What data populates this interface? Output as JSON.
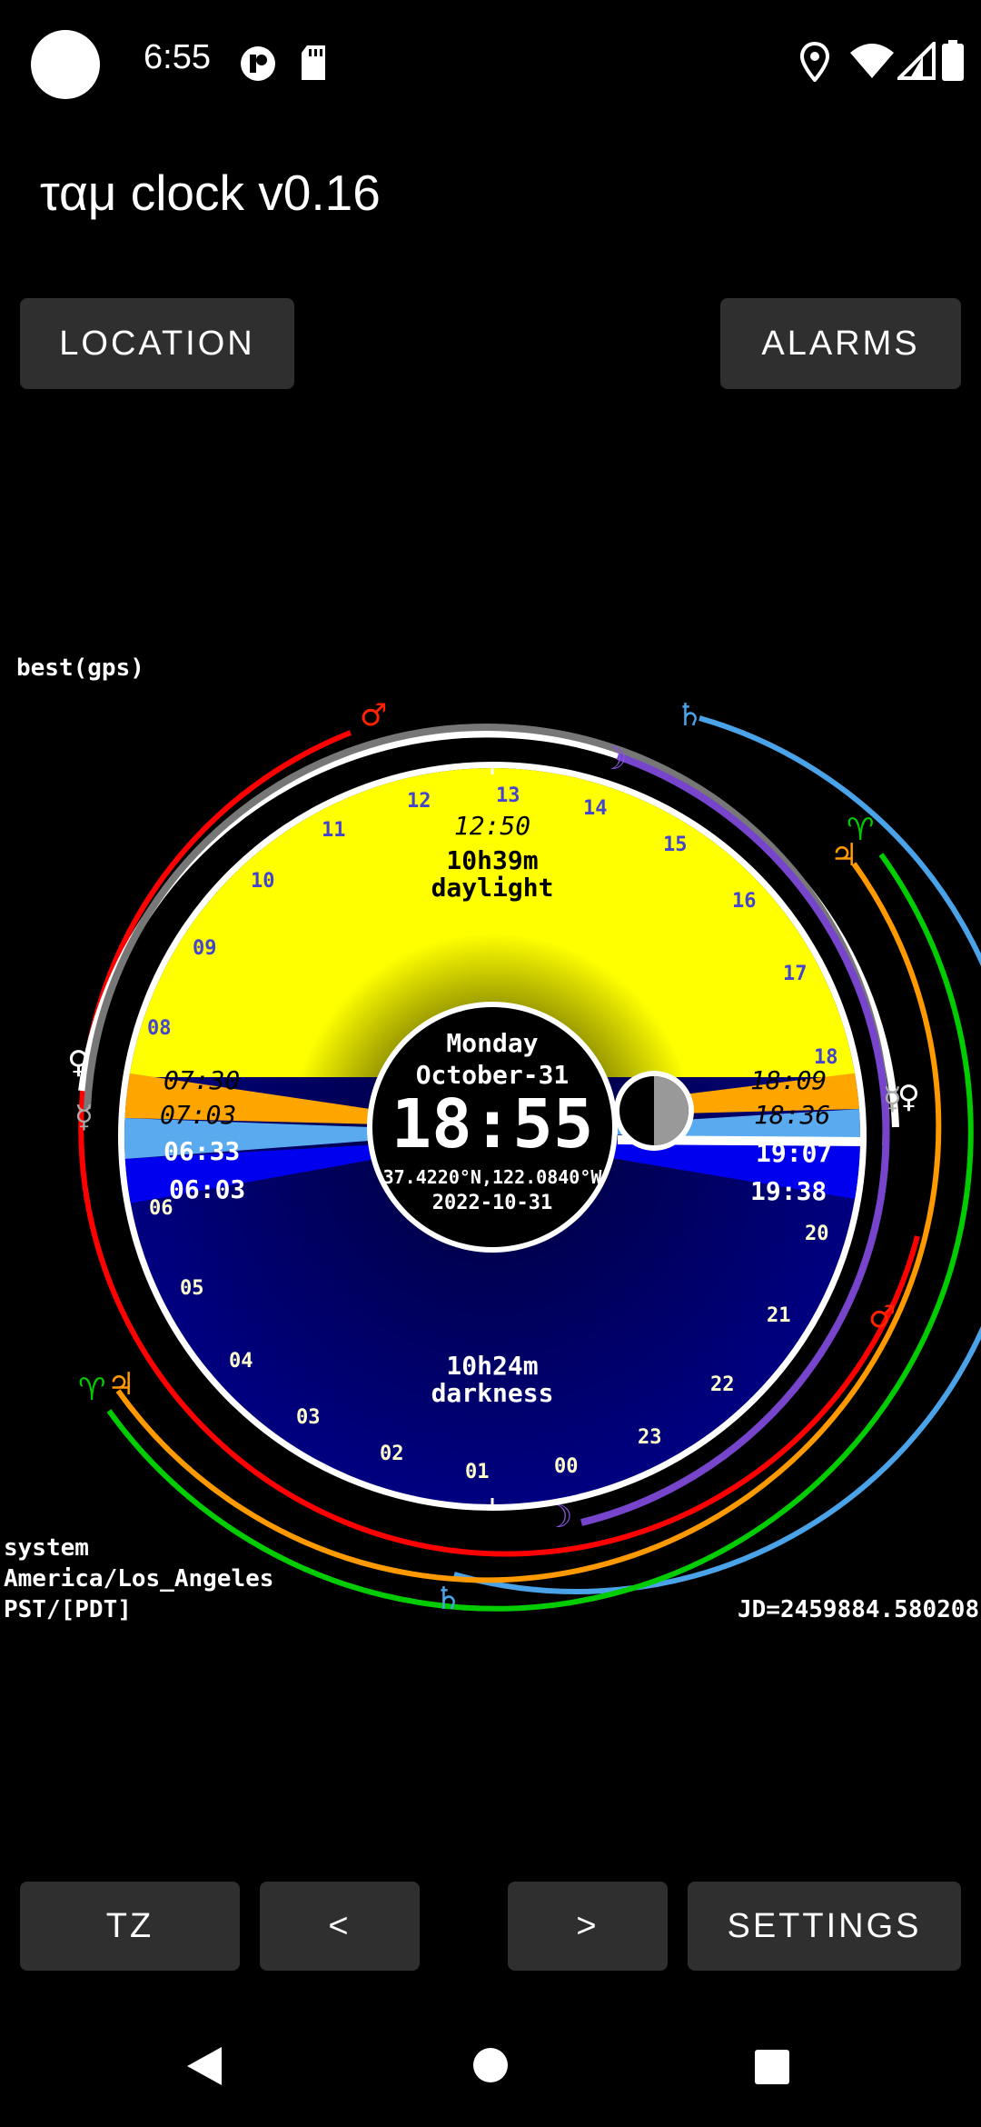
{
  "status_bar": {
    "time": "6:55",
    "icons": [
      "circle-avatar-icon",
      "app-badge-icon",
      "sd-card-icon",
      "location-icon",
      "wifi-icon",
      "signal-icon",
      "battery-icon"
    ]
  },
  "app": {
    "title": "ταμ clock v0.16"
  },
  "top_buttons": {
    "location": "LOCATION",
    "alarms": "ALARMS"
  },
  "labels": {
    "provider": "best(gps)",
    "tz_source": "system",
    "tz_name": "America/Los_Angeles",
    "tz_abbrev": "PST/[PDT]",
    "julian_date": "JD=2459884.580208"
  },
  "clock": {
    "weekday": "Monday",
    "date_short": "October-31",
    "time": "18:55",
    "coords": "37.4220°N,122.0840°W",
    "date_iso": "2022-10-31",
    "solar_noon": "12:50",
    "daylight_duration": "10h39m",
    "daylight_label": "daylight",
    "darkness_duration": "10h24m",
    "darkness_label": "darkness",
    "rise_times": [
      "07:30",
      "07:03",
      "06:33",
      "06:03"
    ],
    "set_times": [
      "18:09",
      "18:36",
      "19:07",
      "19:38"
    ],
    "hour_labels_day": [
      "08",
      "09",
      "10",
      "11",
      "12",
      "13",
      "14",
      "15",
      "16",
      "17",
      "18"
    ],
    "hour_labels_night": [
      "06",
      "05",
      "04",
      "03",
      "02",
      "01",
      "00",
      "23",
      "22",
      "21",
      "20"
    ],
    "colors": {
      "day": "#ffff00",
      "night": "#00007a",
      "twilight_civil": "#ffa500",
      "twilight_nautical": "#5aaaf0",
      "twilight_astro": "#0000ee"
    }
  },
  "bottom_buttons": {
    "tz": "TZ",
    "prev": "<",
    "next": ">",
    "settings": "SETTINGS"
  },
  "nav": [
    "back-icon",
    "home-icon",
    "recents-icon"
  ]
}
